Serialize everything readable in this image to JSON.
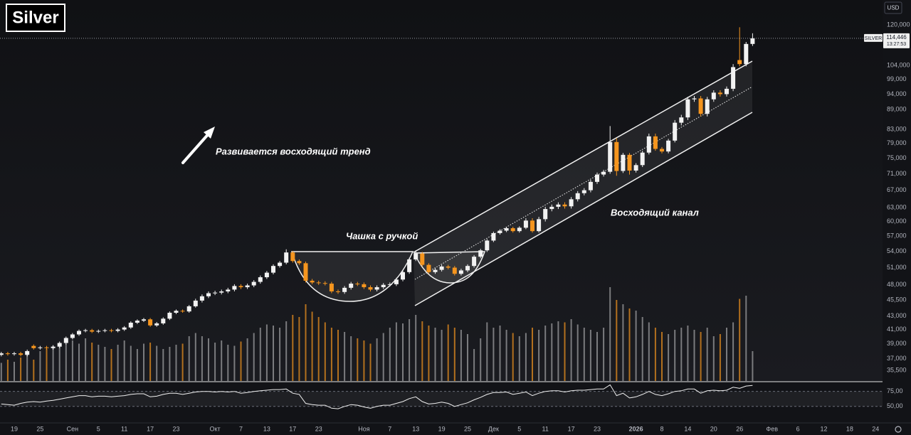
{
  "chart_data": {
    "type": "candlestick",
    "title": "Silver",
    "symbol": "SILVER",
    "currency": "USD",
    "last_price_label": "114,446",
    "countdown": "13:27:53",
    "annotations": [
      "Развивается восходящий тренд",
      "Чашка с ручкой",
      "Восходящий канал"
    ],
    "log_scale": true,
    "up_color": "#f2f2f2",
    "down_color": "#f5951e",
    "ylim": [
      34200,
      131000
    ],
    "yticks": [
      {
        "value": 120000,
        "label": "120,000"
      },
      {
        "value": 104000,
        "label": "104,000"
      },
      {
        "value": 99000,
        "label": "99,000"
      },
      {
        "value": 94000,
        "label": "94,000"
      },
      {
        "value": 89000,
        "label": "89,000"
      },
      {
        "value": 83000,
        "label": "83,000"
      },
      {
        "value": 79000,
        "label": "79,000"
      },
      {
        "value": 75000,
        "label": "75,000"
      },
      {
        "value": 71000,
        "label": "71,000"
      },
      {
        "value": 67000,
        "label": "67,000"
      },
      {
        "value": 63000,
        "label": "63,000"
      },
      {
        "value": 60000,
        "label": "60,000"
      },
      {
        "value": 57000,
        "label": "57,000"
      },
      {
        "value": 54000,
        "label": "54,000"
      },
      {
        "value": 51000,
        "label": "51,000"
      },
      {
        "value": 48000,
        "label": "48,000"
      },
      {
        "value": 45500,
        "label": "45,500"
      },
      {
        "value": 43000,
        "label": "43,000"
      },
      {
        "value": 41000,
        "label": "41,000"
      },
      {
        "value": 39000,
        "label": "39,000"
      },
      {
        "value": 37000,
        "label": "37,000"
      },
      {
        "value": 35500,
        "label": "35,500"
      }
    ],
    "volume_lim": [
      0,
      100
    ],
    "rsi_lim": [
      26,
      90
    ],
    "rsi_ticks": [
      {
        "value": 75,
        "label": "75,00"
      },
      {
        "value": 50,
        "label": "50,00"
      }
    ],
    "categories": [
      null,
      null,
      "19",
      null,
      null,
      null,
      "25",
      null,
      null,
      null,
      null,
      "Сен",
      null,
      null,
      null,
      "5",
      null,
      null,
      null,
      "11",
      null,
      null,
      null,
      "17",
      null,
      null,
      null,
      "23",
      null,
      null,
      null,
      null,
      null,
      "Окт",
      null,
      null,
      null,
      "7",
      null,
      null,
      null,
      "13",
      null,
      null,
      null,
      "17",
      null,
      null,
      null,
      "23",
      null,
      null,
      null,
      null,
      null,
      null,
      "Ноя",
      null,
      null,
      null,
      "7",
      null,
      null,
      null,
      "13",
      null,
      null,
      null,
      "19",
      null,
      null,
      null,
      "25",
      null,
      null,
      null,
      "Дек",
      null,
      null,
      null,
      "5",
      null,
      null,
      null,
      "11",
      null,
      null,
      null,
      "17",
      null,
      null,
      null,
      "23",
      null,
      null,
      null,
      null,
      null,
      "2026",
      null,
      null,
      null,
      "8",
      null,
      null,
      null,
      "14",
      null,
      null,
      null,
      "20",
      null,
      null,
      null,
      "26",
      null,
      null,
      null,
      null,
      "Фев",
      null,
      null,
      null,
      "6",
      null,
      null,
      null,
      "12",
      null,
      null,
      null,
      "18",
      null,
      null,
      null,
      "24"
    ],
    "open": [
      37500,
      37700,
      37600,
      37700,
      37500,
      38700,
      38400,
      38500,
      38400,
      38600,
      39100,
      39800,
      40300,
      40800,
      40900,
      40700,
      40800,
      40900,
      40800,
      41000,
      41300,
      42000,
      42300,
      42500,
      41600,
      41900,
      42600,
      43500,
      43800,
      43700,
      44500,
      45400,
      46100,
      46600,
      46700,
      46900,
      47200,
      47800,
      47600,
      47900,
      48500,
      49300,
      50100,
      51300,
      51900,
      53800,
      52200,
      51800,
      48700,
      48400,
      48300,
      48200,
      46900,
      46800,
      47500,
      48200,
      48100,
      47600,
      47200,
      47600,
      48000,
      48100,
      48900,
      50200,
      52500,
      53600,
      51500,
      50200,
      50600,
      51200,
      51000,
      49900,
      50500,
      51300,
      53000,
      54200,
      56100,
      57600,
      58100,
      58600,
      58000,
      58700,
      60200,
      58000,
      60500,
      62700,
      63200,
      63700,
      63300,
      64900,
      66300,
      67000,
      69000,
      70800,
      71500,
      79400,
      71700,
      75900,
      71800,
      73200,
      76500,
      81000,
      77500,
      76800,
      79800,
      85000,
      86600,
      92300,
      92600,
      87700,
      92300,
      94500,
      94000,
      95800,
      106000,
      104500,
      112200,
      null,
      null,
      null,
      null,
      null,
      null,
      null,
      null,
      null,
      null,
      null,
      null,
      null,
      null,
      null,
      null,
      null,
      null,
      null
    ],
    "high": [
      37900,
      37900,
      37900,
      37900,
      38200,
      38900,
      38700,
      38700,
      38800,
      39300,
      40000,
      40500,
      41000,
      41100,
      41100,
      41000,
      41100,
      41100,
      41200,
      41500,
      42200,
      42500,
      42700,
      42700,
      42100,
      42800,
      43700,
      44000,
      44000,
      44700,
      45700,
      46400,
      46900,
      47000,
      47200,
      47500,
      48100,
      48100,
      48200,
      48800,
      49600,
      50400,
      51600,
      52200,
      54400,
      54100,
      52500,
      52100,
      49000,
      48700,
      48600,
      48500,
      47200,
      47800,
      48500,
      48500,
      48400,
      47900,
      47900,
      48300,
      48400,
      49200,
      50500,
      52800,
      54200,
      53900,
      51800,
      50900,
      51500,
      51500,
      51300,
      50800,
      51600,
      53300,
      54500,
      56400,
      57900,
      58400,
      58900,
      58900,
      59000,
      60700,
      60700,
      61000,
      63200,
      63700,
      64200,
      64200,
      65400,
      66800,
      67500,
      69500,
      71300,
      72000,
      84000,
      80500,
      76400,
      76400,
      73700,
      77000,
      81800,
      81800,
      78000,
      80300,
      85800,
      87400,
      93100,
      93400,
      93400,
      93100,
      95300,
      95300,
      96600,
      104500,
      119000,
      113000,
      116500,
      null,
      null,
      null,
      null,
      null,
      null,
      null,
      null,
      null,
      null,
      null,
      null,
      null,
      null,
      null,
      null,
      null,
      null,
      null
    ],
    "low": [
      37300,
      37400,
      37400,
      37300,
      37300,
      38200,
      38200,
      38200,
      38200,
      38400,
      38900,
      39600,
      40100,
      40600,
      40500,
      40500,
      40600,
      40600,
      40600,
      40800,
      41100,
      41800,
      42100,
      41400,
      41400,
      41700,
      42400,
      43300,
      43500,
      43500,
      44300,
      45100,
      45800,
      46300,
      46400,
      46600,
      46900,
      47300,
      47300,
      47600,
      48200,
      49000,
      49800,
      51000,
      51600,
      51900,
      51500,
      48400,
      48100,
      48000,
      47900,
      46600,
      46500,
      46500,
      47200,
      47800,
      47300,
      46900,
      46900,
      47300,
      47700,
      47800,
      48600,
      49900,
      52200,
      51200,
      49900,
      49900,
      50300,
      50700,
      49600,
      49600,
      50200,
      51000,
      52700,
      53900,
      55800,
      57300,
      57800,
      57700,
      57700,
      58400,
      57700,
      57700,
      60000,
      62200,
      62700,
      62800,
      62800,
      64400,
      65800,
      66500,
      68500,
      70300,
      71000,
      70500,
      71200,
      70800,
      71300,
      72700,
      76000,
      77000,
      76300,
      76300,
      79300,
      84200,
      85800,
      91500,
      86900,
      86900,
      91500,
      93200,
      93200,
      95000,
      103700,
      103700,
      111400,
      null,
      null,
      null,
      null,
      null,
      null,
      null,
      null,
      null,
      null,
      null,
      null,
      null,
      null,
      null,
      null,
      null,
      null,
      null
    ],
    "close": [
      37700,
      37600,
      37700,
      37500,
      38000,
      38400,
      38500,
      38400,
      38600,
      39100,
      39800,
      40300,
      40800,
      40900,
      40700,
      40800,
      40900,
      40800,
      41000,
      41300,
      42000,
      42300,
      42500,
      41600,
      41900,
      42600,
      43500,
      43800,
      43700,
      44500,
      45400,
      46100,
      46600,
      46700,
      46900,
      47200,
      47800,
      47600,
      47900,
      48500,
      49300,
      50100,
      51300,
      51900,
      53800,
      52200,
      51800,
      48700,
      48400,
      48300,
      48200,
      46900,
      46800,
      47500,
      48200,
      48100,
      47600,
      47200,
      47600,
      48000,
      48100,
      48900,
      50200,
      52500,
      53600,
      51500,
      50200,
      50600,
      51200,
      51000,
      49900,
      50500,
      51300,
      53000,
      54200,
      56100,
      57600,
      58100,
      58600,
      58000,
      58700,
      60200,
      58000,
      60500,
      62700,
      63200,
      63700,
      63300,
      64900,
      66300,
      67000,
      69000,
      70800,
      71500,
      79400,
      71700,
      75900,
      71800,
      73200,
      76500,
      81000,
      77500,
      76800,
      79800,
      85000,
      86600,
      92300,
      92600,
      87700,
      92300,
      94500,
      94000,
      95800,
      103400,
      104500,
      112200,
      114446,
      null,
      null,
      null,
      null,
      null,
      null,
      null,
      null,
      null,
      null,
      null,
      null,
      null,
      null,
      null,
      null,
      null,
      null,
      null
    ],
    "volume": [
      17,
      20,
      18,
      22,
      25,
      20,
      28,
      30,
      33,
      36,
      35,
      38,
      35,
      40,
      36,
      34,
      32,
      30,
      34,
      38,
      33,
      30,
      35,
      36,
      33,
      30,
      32,
      34,
      35,
      42,
      45,
      42,
      40,
      36,
      38,
      34,
      33,
      37,
      40,
      45,
      50,
      53,
      52,
      50,
      56,
      62,
      60,
      72,
      65,
      60,
      55,
      50,
      48,
      46,
      42,
      40,
      38,
      35,
      40,
      45,
      50,
      55,
      54,
      58,
      62,
      56,
      52,
      50,
      48,
      53,
      50,
      48,
      44,
      30,
      40,
      55,
      50,
      52,
      48,
      45,
      42,
      45,
      50,
      48,
      52,
      54,
      56,
      55,
      58,
      53,
      50,
      48,
      46,
      50,
      88,
      76,
      72,
      68,
      66,
      60,
      55,
      50,
      46,
      44,
      48,
      50,
      52,
      48,
      46,
      50,
      42,
      44,
      50,
      55,
      77,
      80,
      28,
      null,
      null,
      null,
      null,
      null,
      null,
      null,
      null,
      null,
      null,
      null,
      null,
      null,
      null,
      null,
      null,
      null,
      null,
      null
    ],
    "rsi": [
      54,
      53,
      52,
      55,
      57,
      58,
      57,
      59,
      60,
      62,
      64,
      66,
      68,
      68,
      66,
      67,
      67,
      66,
      67,
      68,
      70,
      71,
      71,
      66,
      67,
      70,
      72,
      72,
      70,
      72,
      74,
      75,
      75,
      74,
      75,
      74,
      75,
      72,
      73,
      75,
      76,
      77,
      78,
      78,
      79,
      72,
      70,
      55,
      53,
      52,
      52,
      47,
      46,
      50,
      53,
      52,
      49,
      47,
      50,
      52,
      52,
      55,
      58,
      63,
      66,
      58,
      54,
      55,
      57,
      55,
      50,
      53,
      56,
      61,
      65,
      70,
      73,
      73,
      74,
      70,
      72,
      74,
      68,
      72,
      75,
      76,
      76,
      74,
      76,
      77,
      77,
      78,
      79,
      79,
      86,
      68,
      72,
      64,
      66,
      70,
      75,
      70,
      68,
      71,
      75,
      76,
      79,
      79,
      72,
      76,
      77,
      76,
      77,
      82,
      80,
      84,
      85,
      null,
      null,
      null,
      null,
      null,
      null,
      null,
      null,
      null,
      null,
      null,
      null,
      null,
      null,
      null,
      null,
      null,
      null,
      null
    ]
  }
}
